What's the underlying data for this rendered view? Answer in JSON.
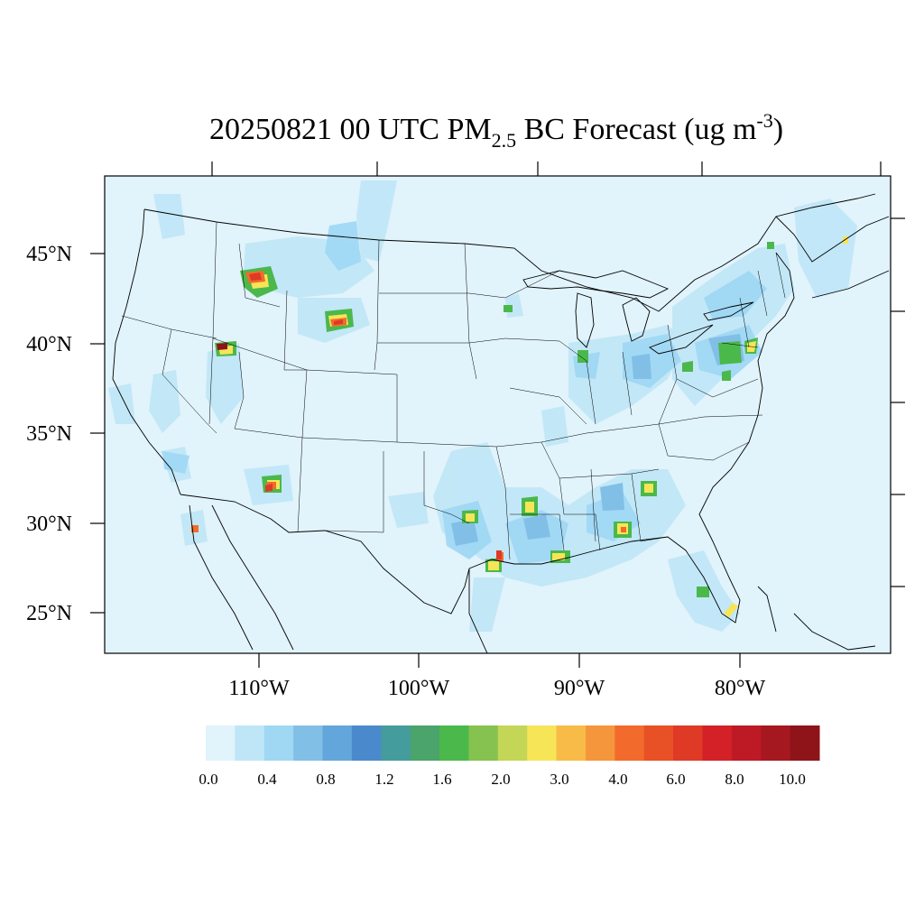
{
  "title": {
    "prefix": "20250821 00 UTC PM",
    "subscript": "2.5",
    "middle": " BC Forecast (ug m",
    "superscript": "-3",
    "suffix": ")"
  },
  "map": {
    "lat_labels": [
      "45°N",
      "40°N",
      "35°N",
      "30°N",
      "25°N"
    ],
    "lon_labels": [
      "110°W",
      "100°W",
      "90°W",
      "80°W"
    ],
    "background_color": "#E1F3FB"
  },
  "colorbar": {
    "tick_labels": [
      "0.0",
      "0.4",
      "0.8",
      "1.2",
      "1.6",
      "2.0",
      "3.0",
      "4.0",
      "6.0",
      "8.0",
      "10.0"
    ],
    "colors": [
      "#E1F3FB",
      "#BFE6F7",
      "#A0D8F4",
      "#82BFE6",
      "#62A6DB",
      "#4A8ACC",
      "#459C9C",
      "#4AA46B",
      "#4BB84B",
      "#86C24F",
      "#C4D656",
      "#F6E557",
      "#F8BB48",
      "#F6963C",
      "#F26B2C",
      "#E85026",
      "#DE3A26",
      "#D42128",
      "#BE1A26",
      "#A61820",
      "#8E141A"
    ]
  }
}
